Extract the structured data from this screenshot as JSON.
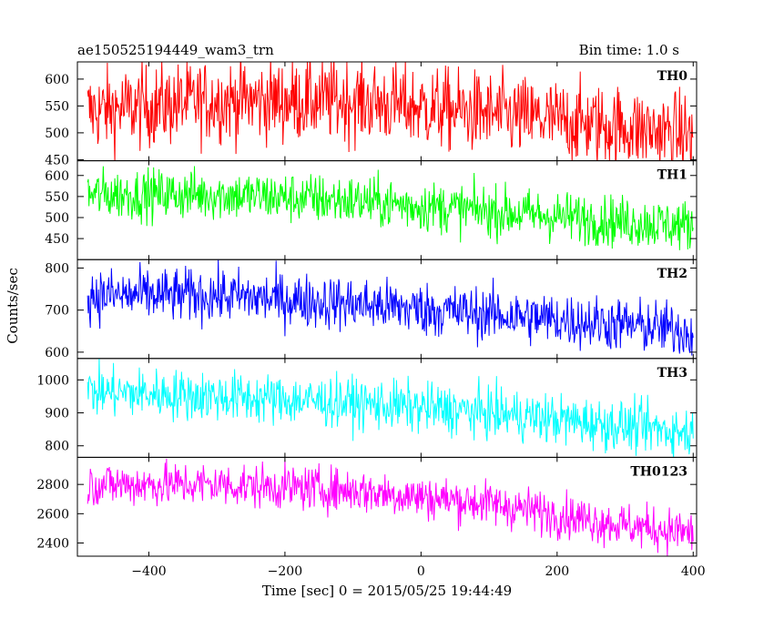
{
  "header": {
    "title": "ae150525194449_wam3_trn",
    "bin_time": "Bin time: 1.0 s"
  },
  "axes": {
    "ylabel": "Counts/sec",
    "xlabel": "Time [sec] 0 = 2015/05/25 19:44:49"
  },
  "chart_data": {
    "type": "line",
    "title": "ae150525194449_wam3_trn",
    "xlabel": "Time [sec] 0 = 2015/05/25 19:44:49",
    "ylabel": "Counts/sec",
    "xlim": [
      -505,
      405
    ],
    "x_ticks": [
      -400,
      -200,
      0,
      200,
      400
    ],
    "x_range": [
      -490,
      400
    ],
    "bin_time_s": 1.0,
    "panels": [
      {
        "name": "TH0",
        "color": "#ff0000",
        "ylim": [
          448,
          632
        ],
        "yticks": [
          450,
          500,
          550,
          600
        ],
        "trend": [
          [
            -490,
            540
          ],
          [
            -300,
            560
          ],
          [
            -100,
            560
          ],
          [
            100,
            535
          ],
          [
            300,
            510
          ],
          [
            400,
            495
          ]
        ],
        "noise": 38
      },
      {
        "name": "TH1",
        "color": "#00ff00",
        "ylim": [
          400,
          635
        ],
        "yticks": [
          450,
          500,
          550,
          600
        ],
        "trend": [
          [
            -490,
            555
          ],
          [
            -300,
            555
          ],
          [
            -100,
            540
          ],
          [
            100,
            515
          ],
          [
            300,
            490
          ],
          [
            400,
            480
          ]
        ],
        "noise": 30
      },
      {
        "name": "TH2",
        "color": "#0000ff",
        "ylim": [
          585,
          820
        ],
        "yticks": [
          600,
          700,
          800
        ],
        "trend": [
          [
            -490,
            735
          ],
          [
            -300,
            735
          ],
          [
            -100,
            715
          ],
          [
            100,
            690
          ],
          [
            300,
            665
          ],
          [
            400,
            650
          ]
        ],
        "noise": 32
      },
      {
        "name": "TH3",
        "color": "#00ffff",
        "ylim": [
          765,
          1065
        ],
        "yticks": [
          800,
          900,
          1000
        ],
        "trend": [
          [
            -490,
            965
          ],
          [
            -300,
            950
          ],
          [
            -100,
            930
          ],
          [
            100,
            900
          ],
          [
            300,
            860
          ],
          [
            400,
            840
          ]
        ],
        "noise": 38
      },
      {
        "name": "TH0123",
        "color": "#ff00ff",
        "ylim": [
          2310,
          2985
        ],
        "yticks": [
          2400,
          2600,
          2800
        ],
        "trend": [
          [
            -490,
            2800
          ],
          [
            -300,
            2800
          ],
          [
            -100,
            2760
          ],
          [
            100,
            2670
          ],
          [
            300,
            2520
          ],
          [
            400,
            2470
          ]
        ],
        "noise": 75
      }
    ]
  }
}
